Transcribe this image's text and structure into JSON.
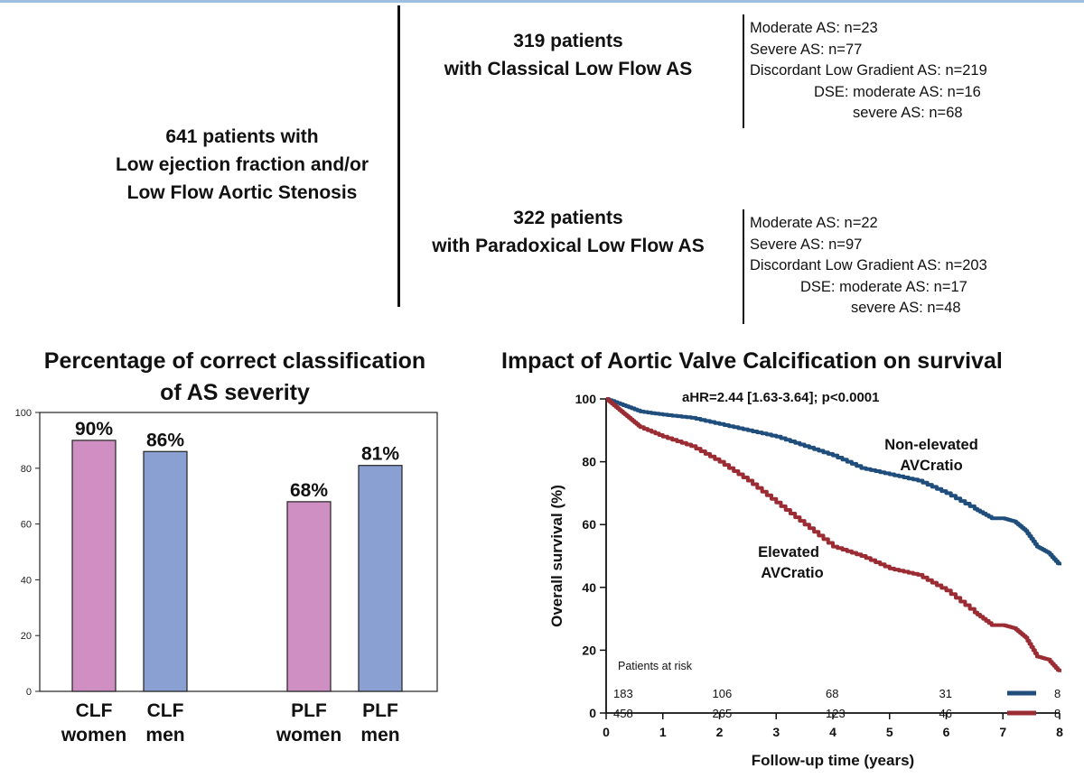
{
  "flowchart": {
    "root": {
      "lines": [
        "641 patients with",
        "Low ejection fraction and/or",
        "Low Flow Aortic Stenosis"
      ]
    },
    "classical": {
      "lines": [
        "319 patients",
        "with Classical Low Flow AS"
      ],
      "details": [
        "Moderate AS: n=23",
        "Severe AS: n=77",
        "Discordant Low Gradient AS: n=219",
        "DSE: moderate AS: n=16",
        "severe AS: n=68"
      ]
    },
    "paradoxical": {
      "lines": [
        "322 patients",
        "with Paradoxical Low Flow AS"
      ],
      "details": [
        "Moderate AS: n=22",
        "Severe AS: n=97",
        "Discordant Low Gradient AS: n=203",
        "DSE: moderate AS: n=17",
        "severe AS: n=48"
      ]
    }
  },
  "chart_data": [
    {
      "type": "bar",
      "title": "Percentage of correct classification of AS severity",
      "title_lines": [
        "Percentage of correct classification",
        "of AS severity"
      ],
      "categories": [
        [
          "CLF",
          "women"
        ],
        [
          "CLF",
          "men"
        ],
        [
          "PLF",
          "women"
        ],
        [
          "PLF",
          "men"
        ]
      ],
      "values": [
        90,
        86,
        68,
        81
      ],
      "value_labels": [
        "90%",
        "86%",
        "68%",
        "81%"
      ],
      "colors": [
        "#cf8fc3",
        "#8aa0d2",
        "#cf8fc3",
        "#8aa0d2"
      ],
      "ylim": [
        0,
        100
      ],
      "yticks": [
        0,
        20,
        40,
        60,
        80,
        100
      ],
      "xlabel": "",
      "ylabel": ""
    },
    {
      "type": "line",
      "title": "Impact of Aortic Valve Calcification on survival",
      "xlabel": "Follow-up time (years)",
      "ylabel": "Overall survival (%)",
      "xlim": [
        0,
        8
      ],
      "ylim": [
        0,
        100
      ],
      "xticks": [
        0,
        1,
        2,
        3,
        4,
        5,
        6,
        7,
        8
      ],
      "yticks": [
        0,
        20,
        40,
        60,
        80,
        100
      ],
      "annotation": "aHR=2.44 [1.63-3.64]; p<0.0001",
      "series": [
        {
          "name": "Non-elevated AVCratio",
          "label_lines": [
            "Non-elevated",
            "AVCratio"
          ],
          "color": "#1f4e7d",
          "x": [
            0,
            0.3,
            0.6,
            1.0,
            1.5,
            2.0,
            2.5,
            3.0,
            3.5,
            4.0,
            4.5,
            5.0,
            5.5,
            6.0,
            6.5,
            6.8,
            7.0,
            7.2,
            7.4,
            7.6,
            7.8,
            8.0
          ],
          "y": [
            100,
            98,
            96,
            95,
            94,
            92,
            90,
            88,
            85,
            82,
            78,
            76,
            74,
            70,
            65,
            62,
            62,
            61,
            58,
            53,
            51,
            47
          ]
        },
        {
          "name": "Elevated AVCratio",
          "label_lines": [
            "Elevated",
            "AVCratio"
          ],
          "color": "#9b2c33",
          "x": [
            0,
            0.2,
            0.4,
            0.6,
            1.0,
            1.5,
            2.0,
            2.5,
            3.0,
            3.5,
            4.0,
            4.5,
            5.0,
            5.5,
            6.0,
            6.5,
            6.8,
            7.0,
            7.2,
            7.4,
            7.6,
            7.8,
            8.0
          ],
          "y": [
            100,
            97,
            94,
            91,
            88,
            85,
            80,
            74,
            67,
            60,
            53,
            50,
            46,
            44,
            39,
            32,
            28,
            28,
            27,
            24,
            18,
            17,
            13
          ]
        }
      ],
      "risk_table": {
        "title": "Patients at risk",
        "x": [
          0,
          2,
          4,
          6,
          8
        ],
        "rows": [
          {
            "series": "Non-elevated AVCratio",
            "color": "#1f4e7d",
            "values": [
              "183",
              "106",
              "68",
              "31",
              "8"
            ]
          },
          {
            "series": "Elevated AVCratio",
            "color": "#9b2c33",
            "values": [
              "458",
              "265",
              "123",
              "46",
              "8"
            ]
          }
        ]
      }
    }
  ]
}
